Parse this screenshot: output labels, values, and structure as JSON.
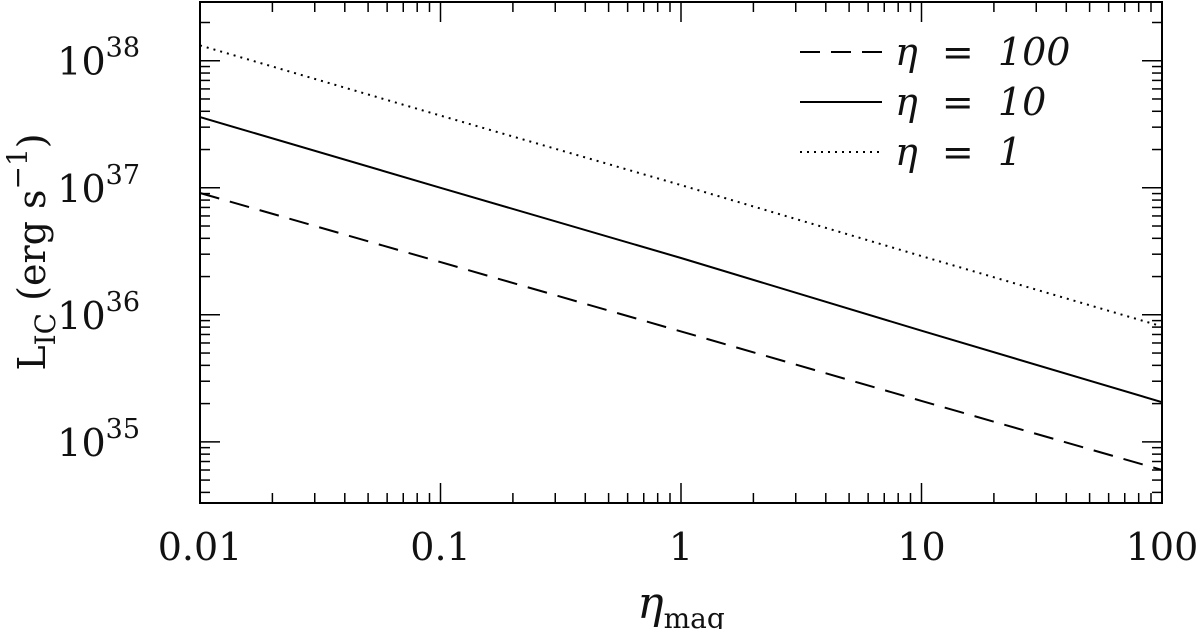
{
  "chart_data": {
    "type": "line",
    "xlabel": {
      "text": "η",
      "sub": "mag"
    },
    "ylabel": {
      "text": "L",
      "sub": "IC",
      "rest": " (erg s",
      "sup": "−1",
      "close": ")"
    },
    "x": [
      0.01,
      0.1,
      1,
      10,
      100
    ],
    "series": [
      {
        "name": "η  =  100",
        "color": "#000000",
        "dash": "dashed",
        "values": [
          9.1e+36,
          2.6e+36,
          7.4e+35,
          2.1e+35,
          6e+34
        ]
      },
      {
        "name": "η  =  10",
        "color": "#000000",
        "dash": "solid",
        "values": [
          3.6e+37,
          1e+37,
          2.8e+36,
          7.5e+35,
          2.05e+35
        ]
      },
      {
        "name": "η  =  1",
        "color": "#000000",
        "dash": "dotted",
        "values": [
          1.32e+38,
          3.7e+37,
          1.05e+37,
          2.9e+36,
          8.1e+35
        ]
      }
    ],
    "xlim": [
      0.01,
      100
    ],
    "xticks": [
      0.01,
      0.1,
      1,
      10,
      100
    ],
    "xscale": "log",
    "ylim": [
      3.3e+34,
      2.9e+38
    ],
    "yscale": "log",
    "yticks": [
      {
        "value": 1e+35,
        "label": "10",
        "exponent": "35"
      },
      {
        "value": 1e+36,
        "label": "10",
        "exponent": "36"
      },
      {
        "value": 1e+37,
        "label": "10",
        "exponent": "37"
      },
      {
        "value": 1e+38,
        "label": "10",
        "exponent": "38"
      }
    ],
    "grid": false,
    "legend": "upper right"
  }
}
